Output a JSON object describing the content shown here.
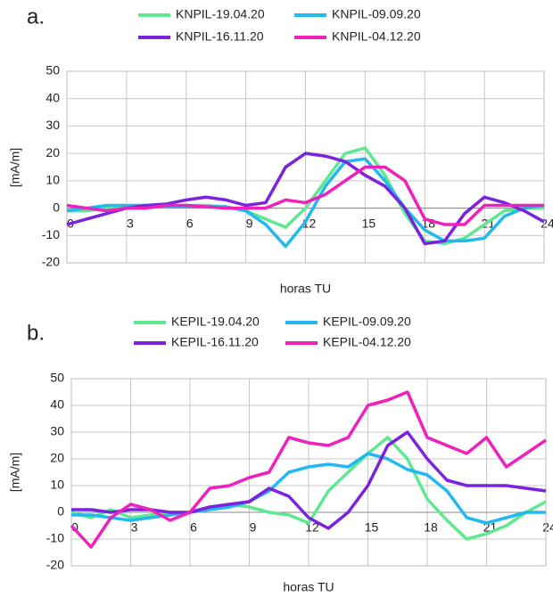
{
  "chart_data": [
    {
      "type": "line",
      "panel_label": "a.",
      "x_label": "horas TU",
      "y_label": "[mA/m]",
      "x": [
        0,
        1,
        2,
        3,
        4,
        5,
        6,
        7,
        8,
        9,
        10,
        11,
        12,
        13,
        14,
        15,
        16,
        17,
        18,
        19,
        20,
        21,
        22,
        23,
        24
      ],
      "xlim": [
        0,
        24
      ],
      "xticks": [
        0,
        3,
        6,
        9,
        12,
        15,
        18,
        21,
        24
      ],
      "ylim": [
        -20,
        50
      ],
      "yticks": [
        -20,
        -10,
        0,
        10,
        20,
        30,
        40,
        50
      ],
      "grid": true,
      "series": [
        {
          "name": "KNPIL-19.04.20",
          "color": "#5ee88f",
          "values": [
            -1,
            -1,
            0,
            0,
            0.5,
            0.5,
            1,
            1,
            0.5,
            -1,
            -4,
            -7,
            0,
            10,
            20,
            22,
            12,
            -2,
            -12,
            -13,
            -11,
            -6,
            -1,
            0,
            0
          ]
        },
        {
          "name": "KNPIL-09.09.20",
          "color": "#22b8f0",
          "values": [
            -1,
            0,
            1,
            1,
            1,
            0.5,
            0.5,
            0.5,
            0.5,
            -1,
            -6,
            -14,
            -5,
            8,
            17,
            18,
            10,
            0,
            -8,
            -12,
            -12,
            -11,
            -3,
            0,
            1
          ]
        },
        {
          "name": "KNPIL-16.11.20",
          "color": "#7a22dd",
          "values": [
            -6,
            -4,
            -2,
            0,
            1,
            1.5,
            3,
            4,
            3,
            1,
            2,
            15,
            20,
            19,
            17,
            12,
            8,
            0,
            -13,
            -12,
            -2,
            4,
            2,
            -1,
            -5
          ]
        },
        {
          "name": "KNPIL-04.12.20",
          "color": "#ee22bb",
          "values": [
            1,
            0,
            -1,
            0,
            0,
            1,
            1,
            0.5,
            0,
            0,
            0,
            3,
            2,
            5,
            10,
            15,
            15,
            10,
            -4,
            -6,
            -6,
            1,
            1,
            1,
            1
          ]
        }
      ]
    },
    {
      "type": "line",
      "panel_label": "b.",
      "x_label": "horas TU",
      "y_label": "[mA/m]",
      "x": [
        0,
        1,
        2,
        3,
        4,
        5,
        6,
        7,
        8,
        9,
        10,
        11,
        12,
        13,
        14,
        15,
        16,
        17,
        18,
        19,
        20,
        21,
        22,
        23,
        24
      ],
      "xlim": [
        0,
        24
      ],
      "xticks": [
        0,
        3,
        6,
        9,
        12,
        15,
        18,
        21,
        24
      ],
      "ylim": [
        -20,
        50
      ],
      "yticks": [
        -20,
        -10,
        0,
        10,
        20,
        30,
        40,
        50
      ],
      "grid": true,
      "series": [
        {
          "name": "KEPIL-19.04.20",
          "color": "#5ee88f",
          "values": [
            0,
            -2,
            1,
            -2,
            -1,
            0,
            0,
            2,
            3,
            2,
            0,
            -1,
            -4,
            8,
            15,
            22,
            28,
            20,
            5,
            -3,
            -10,
            -8,
            -5,
            0,
            4
          ]
        },
        {
          "name": "KEPIL-09.09.20",
          "color": "#22b8f0",
          "values": [
            -1,
            -1,
            -2,
            -3,
            -2,
            -1,
            0,
            1,
            2,
            4,
            8,
            15,
            17,
            18,
            17,
            22,
            20,
            16,
            14,
            8,
            -2,
            -4,
            -2,
            0,
            0
          ]
        },
        {
          "name": "KEPIL-16.11.20",
          "color": "#7a22dd",
          "values": [
            1,
            1,
            0,
            1,
            1,
            0,
            0,
            2,
            3,
            4,
            9,
            6,
            -2,
            -6,
            0,
            10,
            25,
            30,
            20,
            12,
            10,
            10,
            10,
            9,
            8
          ]
        },
        {
          "name": "KEPIL-04.12.20",
          "color": "#ee22bb",
          "values": [
            -5,
            -13,
            -2,
            3,
            1,
            -3,
            0,
            9,
            10,
            13,
            15,
            28,
            26,
            25,
            28,
            40,
            42,
            45,
            28,
            25,
            22,
            28,
            17,
            22,
            27
          ]
        }
      ]
    }
  ]
}
